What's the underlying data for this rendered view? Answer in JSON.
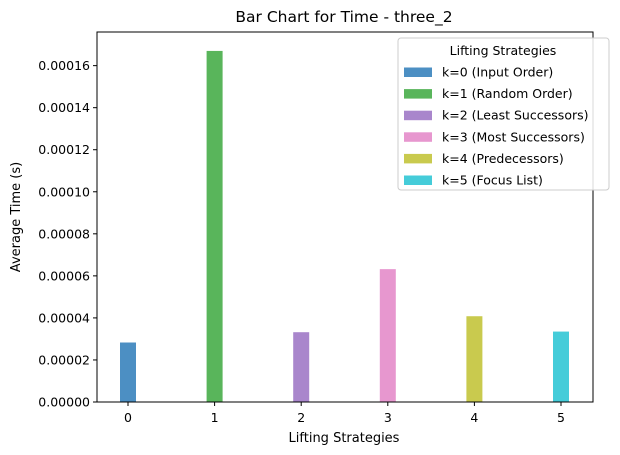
{
  "chart_data": {
    "type": "bar",
    "title": "Bar Chart for Time - three_2",
    "xlabel": "Lifting Strategies",
    "ylabel": "Average Time (s)",
    "categories": [
      "0",
      "1",
      "2",
      "3",
      "4",
      "5"
    ],
    "values": [
      2.83e-05,
      0.000167,
      3.32e-05,
      6.32e-05,
      4.08e-05,
      3.35e-05
    ],
    "colors": [
      "#4c8fc3",
      "#59b55b",
      "#a986cc",
      "#e797cf",
      "#c9ca4e",
      "#45ccd9"
    ],
    "ylim": [
      0,
      0.000176
    ],
    "yticks": [
      0,
      2e-05,
      4e-05,
      6e-05,
      8e-05,
      0.0001,
      0.00012,
      0.00014,
      0.00016
    ],
    "ytick_labels": [
      "0.00000",
      "0.00002",
      "0.00004",
      "0.00006",
      "0.00008",
      "0.00010",
      "0.00012",
      "0.00014",
      "0.00016"
    ],
    "grid": false,
    "legend": {
      "title": "Lifting Strategies",
      "placement": "top-right",
      "entries": [
        "k=0 (Input Order)",
        "k=1 (Random Order)",
        "k=2 (Least Successors)",
        "k=3 (Most Successors)",
        "k=4 (Predecessors)",
        "k=5 (Focus List)"
      ]
    }
  }
}
